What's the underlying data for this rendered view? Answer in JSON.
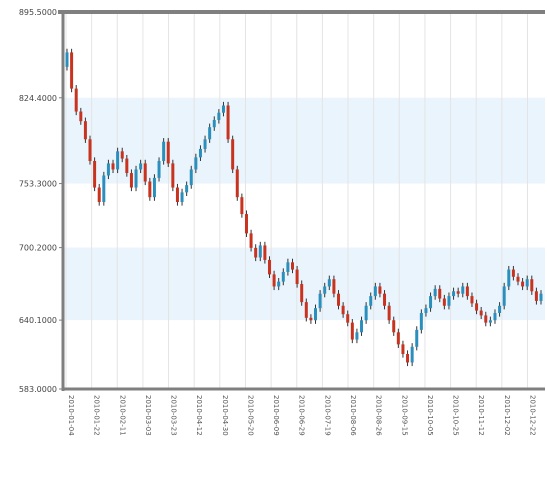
{
  "chart_data": {
    "type": "candlestick",
    "y_ticks": [
      "895.5000",
      "824.4000",
      "753.3000",
      "700.2000",
      "640.1000",
      "583.0000"
    ],
    "y_tick_values": [
      895.5,
      824.4,
      753.3,
      700.2,
      640.1,
      583.0
    ],
    "ylim": [
      583.0,
      895.5
    ],
    "x_ticks": [
      "2010-01-04",
      "2010-01-22",
      "2010-02-11",
      "2010-03-03",
      "2010-03-23",
      "2010-04-12",
      "2010-04-30",
      "2010-05-20",
      "2010-06-09",
      "2010-06-29",
      "2010-07-19",
      "2010-08-06",
      "2010-08-26",
      "2010-09-15",
      "2010-10-05",
      "2010-10-25",
      "2010-11-12",
      "2010-12-02",
      "2010-12-22"
    ],
    "grid": true,
    "bands": [
      [
        753.3,
        824.4
      ],
      [
        640.1,
        700.2
      ]
    ],
    "colors": {
      "up": "#2a8fbd",
      "down": "#c8331f",
      "band": "#eaf4fc",
      "axis": "#7f7f7f",
      "grid": "#e4e4e4"
    },
    "close": [
      862,
      832,
      813,
      805,
      790,
      772,
      750,
      738,
      760,
      770,
      765,
      780,
      774,
      762,
      750,
      765,
      770,
      755,
      742,
      758,
      772,
      788,
      770,
      750,
      738,
      746,
      752,
      765,
      775,
      782,
      790,
      800,
      806,
      812,
      818,
      790,
      765,
      742,
      728,
      712,
      700,
      692,
      702,
      690,
      678,
      668,
      672,
      680,
      688,
      682,
      670,
      655,
      642,
      640,
      650,
      662,
      668,
      674,
      662,
      652,
      645,
      638,
      624,
      630,
      640,
      652,
      660,
      668,
      662,
      652,
      640,
      630,
      620,
      612,
      605,
      618,
      632,
      646,
      650,
      660,
      666,
      658,
      652,
      660,
      664,
      662,
      668,
      660,
      654,
      648,
      644,
      638,
      640,
      646,
      652,
      668,
      682,
      676,
      672,
      668,
      674,
      664,
      656,
      662
    ]
  }
}
